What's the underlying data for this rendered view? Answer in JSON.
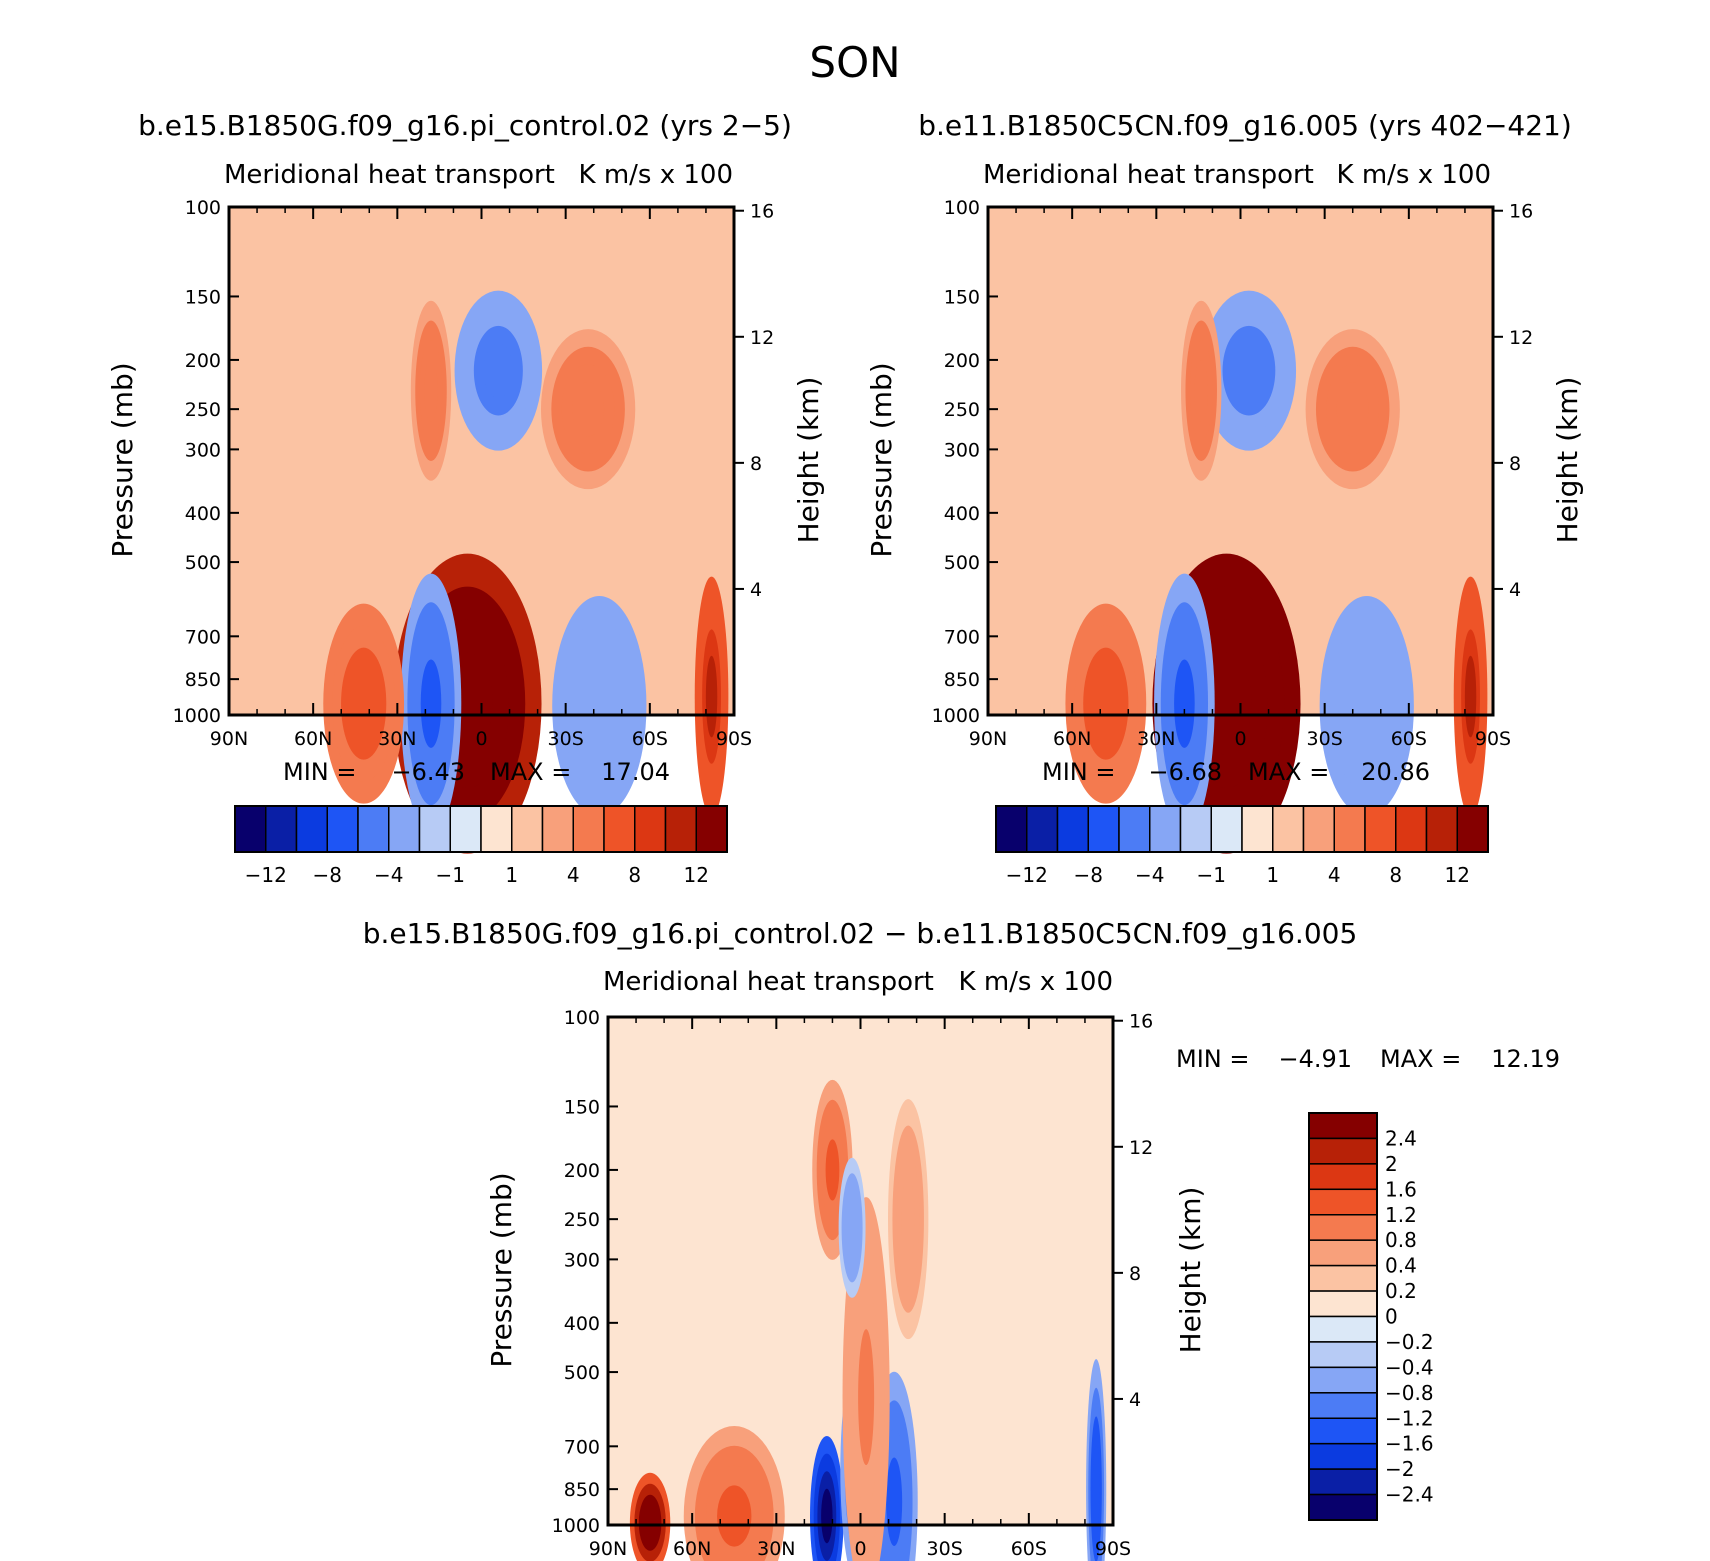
{
  "figure": {
    "title": "SON"
  },
  "colors": {
    "top_scale": [
      "#08006c",
      "#0a1fa6",
      "#0b3be0",
      "#1e55f5",
      "#4c7cf5",
      "#86a6f5",
      "#b7cbf5",
      "#dbe8f7",
      "#fde4d1",
      "#fbc3a3",
      "#f8a07b",
      "#f47a4f",
      "#ee5428",
      "#dc3713",
      "#b72107",
      "#850000"
    ],
    "diff_scale": [
      "#08006c",
      "#0a1fa6",
      "#0b3be0",
      "#1e55f5",
      "#4c7cf5",
      "#86a6f5",
      "#b7cbf5",
      "#dbe8f7",
      "#fde4d1",
      "#fbc3a3",
      "#f8a07b",
      "#f47a4f",
      "#ee5428",
      "#dc3713",
      "#b72107",
      "#850000"
    ]
  },
  "chart_data": [
    {
      "type": "heatmap",
      "case_title": "b.e15.B1850G.f09_g16.pi_control.02 (yrs 2−5)",
      "title_left": "Meridional heat transport",
      "title_right": "K m/s x 100",
      "ylabel": "Pressure (mb)",
      "ylabel_right": "Height (km)",
      "x_ticks": [
        "90N",
        "60N",
        "30N",
        "0",
        "30S",
        "60S",
        "90S"
      ],
      "y_ticks": [
        "100",
        "150",
        "200",
        "250",
        "300",
        "400",
        "500",
        "700",
        "850",
        "1000"
      ],
      "height_ticks": [
        "16",
        "12",
        "8",
        "4"
      ],
      "min_label": "MIN =",
      "min_value": "−6.43",
      "max_label": "MAX =",
      "max_value": "17.04",
      "colorbar_labels": [
        "−12",
        "−8",
        "−4",
        "−1",
        "1",
        "4",
        "8",
        "12"
      ],
      "features": [
        {
          "lat": 5,
          "p": 950,
          "value": 17.04,
          "sx": 22,
          "sy": 150
        },
        {
          "lat": 18,
          "p": 950,
          "value": -6.43,
          "sx": 9,
          "sy": 130
        },
        {
          "lat": -42,
          "p": 960,
          "value": -4,
          "sx": 14,
          "sy": 110
        },
        {
          "lat": 42,
          "p": 950,
          "value": 5,
          "sx": 12,
          "sy": 100
        },
        {
          "lat": -6,
          "p": 210,
          "value": -5,
          "sx": 13,
          "sy": 80
        },
        {
          "lat": 18,
          "p": 230,
          "value": 3,
          "sx": 6,
          "sy": 90
        },
        {
          "lat": -38,
          "p": 250,
          "value": 3,
          "sx": 14,
          "sy": 80
        },
        {
          "lat": -82,
          "p": 920,
          "value": 8,
          "sx": 5,
          "sy": 120
        }
      ]
    },
    {
      "type": "heatmap",
      "case_title": "b.e11.B1850C5CN.f09_g16.005 (yrs 402−421)",
      "title_left": "Meridional heat transport",
      "title_right": "K m/s x 100",
      "ylabel": "Pressure (mb)",
      "ylabel_right": "Height (km)",
      "x_ticks": [
        "90N",
        "60N",
        "30N",
        "0",
        "30S",
        "60S",
        "90S"
      ],
      "y_ticks": [
        "100",
        "150",
        "200",
        "250",
        "300",
        "400",
        "500",
        "700",
        "850",
        "1000"
      ],
      "height_ticks": [
        "16",
        "12",
        "8",
        "4"
      ],
      "min_label": "MIN =",
      "min_value": "−6.68",
      "max_label": "MAX =",
      "max_value": "20.86",
      "colorbar_labels": [
        "−12",
        "−8",
        "−4",
        "−1",
        "1",
        "4",
        "8",
        "12"
      ],
      "features": [
        {
          "lat": 5,
          "p": 950,
          "value": 20.86,
          "sx": 22,
          "sy": 150
        },
        {
          "lat": 20,
          "p": 950,
          "value": -6.68,
          "sx": 9,
          "sy": 130
        },
        {
          "lat": -45,
          "p": 960,
          "value": -4,
          "sx": 14,
          "sy": 110
        },
        {
          "lat": 48,
          "p": 950,
          "value": 5,
          "sx": 12,
          "sy": 100
        },
        {
          "lat": -3,
          "p": 210,
          "value": -5,
          "sx": 14,
          "sy": 80
        },
        {
          "lat": 14,
          "p": 230,
          "value": 3,
          "sx": 6,
          "sy": 90
        },
        {
          "lat": -40,
          "p": 250,
          "value": 3,
          "sx": 14,
          "sy": 80
        },
        {
          "lat": -82,
          "p": 920,
          "value": 8,
          "sx": 5,
          "sy": 120
        }
      ]
    },
    {
      "type": "heatmap",
      "case_title": "b.e15.B1850G.f09_g16.pi_control.02 − b.e11.B1850C5CN.f09_g16.005",
      "title_left": "Meridional heat transport",
      "title_right": "K m/s x 100",
      "ylabel": "Pressure (mb)",
      "ylabel_right": "Height (km)",
      "x_ticks": [
        "90N",
        "60N",
        "30N",
        "0",
        "30S",
        "60S",
        "90S"
      ],
      "y_ticks": [
        "100",
        "150",
        "200",
        "250",
        "300",
        "400",
        "500",
        "700",
        "850",
        "1000"
      ],
      "height_ticks": [
        "16",
        "12",
        "8",
        "4"
      ],
      "min_label": "MIN =",
      "min_value": "−4.91",
      "max_label": "MAX =",
      "max_value": "12.19",
      "colorbar_labels": [
        "2.4",
        "2",
        "1.6",
        "1.2",
        "0.8",
        "0.4",
        "0.2",
        "0",
        "−0.2",
        "−0.4",
        "−0.8",
        "−1.2",
        "−1.6",
        "−2",
        "−2.4"
      ],
      "features": [
        {
          "lat": 75,
          "p": 990,
          "value": 3,
          "sx": 6,
          "sy": 50
        },
        {
          "lat": 45,
          "p": 960,
          "value": 1.2,
          "sx": 15,
          "sy": 90
        },
        {
          "lat": 12,
          "p": 960,
          "value": -2.5,
          "sx": 5,
          "sy": 80
        },
        {
          "lat": -1,
          "p": 960,
          "value": 2.2,
          "sx": 4,
          "sy": 70
        },
        {
          "lat": -12,
          "p": 900,
          "value": -1.3,
          "sx": 7,
          "sy": 130
        },
        {
          "lat": 0,
          "p": 780,
          "value": -1.2,
          "sx": 6,
          "sy": 120
        },
        {
          "lat": -2,
          "p": 560,
          "value": 0.9,
          "sx": 7,
          "sy": 200
        },
        {
          "lat": 10,
          "p": 200,
          "value": 1.3,
          "sx": 6,
          "sy": 90
        },
        {
          "lat": 3,
          "p": 260,
          "value": -0.6,
          "sx": 4,
          "sy": 70
        },
        {
          "lat": -17,
          "p": 250,
          "value": 0.6,
          "sx": 6,
          "sy": 120
        },
        {
          "lat": -84,
          "p": 850,
          "value": -1.5,
          "sx": 3,
          "sy": 130
        }
      ]
    }
  ]
}
